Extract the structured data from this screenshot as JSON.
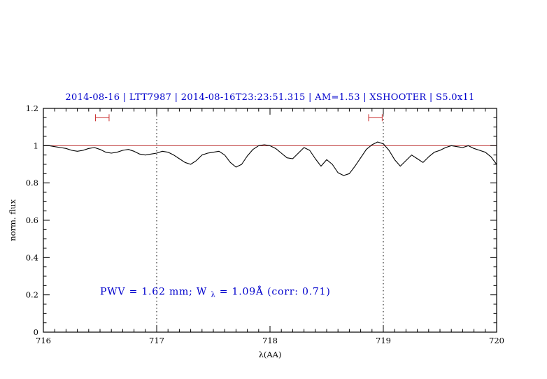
{
  "chart_data": {
    "type": "line",
    "title": "2014-08-16 | LTT7987 | 2014-08-16T23:23:51.315 | AM=1.53 | XSHOOTER | S5.0x11",
    "xlabel": "λ(AA)",
    "ylabel": "norm. flux",
    "xlim": [
      716,
      720
    ],
    "ylim": [
      0,
      1.2
    ],
    "x_ticks": [
      716,
      717,
      718,
      719,
      720
    ],
    "x_tick_labels": [
      "716",
      "717",
      "718",
      "719",
      "720"
    ],
    "x_minor_step": 0.1,
    "y_ticks": [
      0,
      0.2,
      0.4,
      0.6,
      0.8,
      1,
      1.2
    ],
    "y_tick_labels": [
      "0",
      "0.2",
      "0.4",
      "0.6",
      "0.8",
      "1",
      "1.2"
    ],
    "y_minor_step": 0.05,
    "grid": false,
    "legend": "none",
    "ref_vlines": [
      717,
      719
    ],
    "continuum_level": 1.0,
    "series": [
      {
        "name": "spectrum",
        "x_start": 716.0,
        "x_step": 0.05,
        "values": [
          1.0,
          1.0,
          0.995,
          0.99,
          0.985,
          0.975,
          0.97,
          0.975,
          0.985,
          0.99,
          0.98,
          0.965,
          0.96,
          0.965,
          0.975,
          0.98,
          0.97,
          0.955,
          0.95,
          0.955,
          0.96,
          0.97,
          0.965,
          0.95,
          0.93,
          0.91,
          0.9,
          0.92,
          0.95,
          0.96,
          0.965,
          0.97,
          0.95,
          0.91,
          0.885,
          0.9,
          0.945,
          0.98,
          1.0,
          1.005,
          1.0,
          0.985,
          0.96,
          0.935,
          0.93,
          0.96,
          0.99,
          0.975,
          0.93,
          0.89,
          0.925,
          0.9,
          0.855,
          0.84,
          0.85,
          0.89,
          0.935,
          0.98,
          1.005,
          1.02,
          1.01,
          0.975,
          0.925,
          0.89,
          0.92,
          0.95,
          0.93,
          0.91,
          0.94,
          0.965,
          0.975,
          0.99,
          1.0,
          0.995,
          0.99,
          1.0,
          0.985,
          0.975,
          0.965,
          0.94,
          0.9
        ]
      }
    ],
    "range_markers": [
      {
        "center": 716.52,
        "half_width": 0.06,
        "y": 1.15
      },
      {
        "center": 718.93,
        "half_width": 0.06,
        "y": 1.15
      }
    ],
    "annotation": {
      "prefix": "PWV = 1.62 mm; W",
      "sub": "λ",
      "suffix": " = 1.09Å (corr: 0.71)",
      "x": 716.5,
      "y": 0.2
    },
    "colors": {
      "text_blue": "#0000cc",
      "continuum_red": "#bb3333",
      "marker_red": "#cc3333",
      "spectrum_black": "#000000"
    }
  }
}
